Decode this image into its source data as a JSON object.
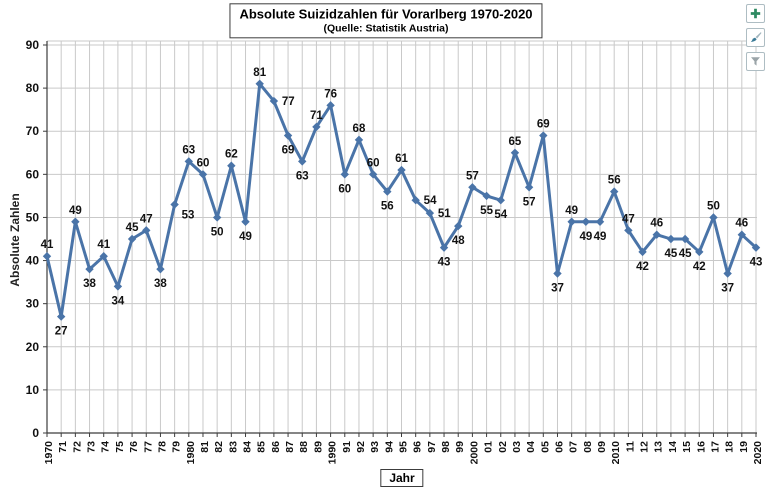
{
  "toolbar": {
    "buttons": [
      {
        "name": "add",
        "icon": "plus-icon",
        "color": "#2e8a62"
      },
      {
        "name": "brush",
        "icon": "brush-icon",
        "color": "#3a7a96",
        "handle_color": "#9fb4bd"
      },
      {
        "name": "filter",
        "icon": "funnel-icon",
        "color": "#9aa4a8",
        "stroke_color": "#7d878b"
      }
    ]
  },
  "chart_data": {
    "type": "line",
    "title": "Absolute Suizidzahlen für Vorarlberg 1970-2020",
    "subtitle": "(Quelle: Statistik Austria)",
    "xlabel": "Jahr",
    "ylabel": "Absolute Zahlen",
    "categories": [
      "1970",
      "71",
      "72",
      "73",
      "74",
      "75",
      "76",
      "77",
      "78",
      "79",
      "1980",
      "81",
      "82",
      "83",
      "84",
      "85",
      "86",
      "87",
      "88",
      "89",
      "1990",
      "91",
      "92",
      "93",
      "94",
      "95",
      "96",
      "97",
      "98",
      "99",
      "2000",
      "01",
      "02",
      "03",
      "04",
      "05",
      "06",
      "07",
      "08",
      "09",
      "2010",
      "11",
      "12",
      "13",
      "14",
      "15",
      "16",
      "17",
      "18",
      "19",
      "2020"
    ],
    "values": [
      41,
      27,
      49,
      38,
      41,
      34,
      45,
      47,
      38,
      53,
      63,
      60,
      50,
      62,
      49,
      81,
      77,
      69,
      63,
      71,
      76,
      60,
      68,
      60,
      56,
      61,
      54,
      51,
      43,
      48,
      57,
      55,
      54,
      65,
      57,
      69,
      37,
      49,
      49,
      49,
      56,
      47,
      42,
      46,
      45,
      45,
      42,
      50,
      37,
      46,
      43
    ],
    "label_positions": [
      "a",
      "b",
      "a",
      "b",
      "a",
      "b",
      "a",
      "a",
      "b",
      "br",
      "a",
      "a",
      "b",
      "a",
      "b",
      "a",
      "r",
      "b",
      "b",
      "a",
      "a",
      "b",
      "a",
      "a",
      "b",
      "a",
      "r",
      "r",
      "b",
      "b",
      "a",
      "b",
      "b",
      "a",
      "b",
      "a",
      "b",
      "a",
      "b",
      "b",
      "a",
      "a",
      "b",
      "a",
      "b",
      "b",
      "b",
      "a",
      "b",
      "a",
      "b"
    ],
    "ylim": [
      0,
      90
    ],
    "ytick_step": 10,
    "grid": true,
    "legend": "none",
    "line_color": "#4a74a8",
    "grid_color": "#c9c9c9",
    "axis_color": "#3c3c3c",
    "data_labels": true,
    "marker": "diamond"
  }
}
